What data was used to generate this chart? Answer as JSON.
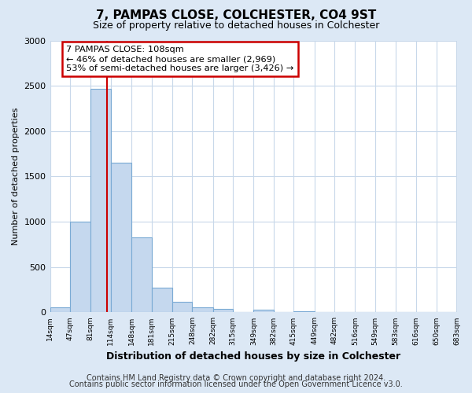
{
  "title": "7, PAMPAS CLOSE, COLCHESTER, CO4 9ST",
  "subtitle": "Size of property relative to detached houses in Colchester",
  "xlabel": "Distribution of detached houses by size in Colchester",
  "ylabel": "Number of detached properties",
  "bar_edges": [
    14,
    47,
    81,
    114,
    148,
    181,
    215,
    248,
    282,
    315,
    349,
    382,
    415,
    449,
    482,
    516,
    549,
    583,
    616,
    650,
    683
  ],
  "bar_heights": [
    55,
    1000,
    2470,
    1650,
    830,
    270,
    120,
    55,
    35,
    0,
    30,
    0,
    15,
    0,
    0,
    0,
    0,
    0,
    0,
    0
  ],
  "bar_color": "#c5d8ee",
  "bar_edge_color": "#7aaad4",
  "bar_linewidth": 0.8,
  "vline_x": 108,
  "vline_color": "#cc0000",
  "vline_linewidth": 1.5,
  "annotation_line1": "7 PAMPAS CLOSE: 108sqm",
  "annotation_line2": "← 46% of detached houses are smaller (2,969)",
  "annotation_line3": "53% of semi-detached houses are larger (3,426) →",
  "annotation_box_color": "#cc0000",
  "annotation_box_bg": "#ffffff",
  "ylim": [
    0,
    3000
  ],
  "yticks": [
    0,
    500,
    1000,
    1500,
    2000,
    2500,
    3000
  ],
  "tick_labels": [
    "14sqm",
    "47sqm",
    "81sqm",
    "114sqm",
    "148sqm",
    "181sqm",
    "215sqm",
    "248sqm",
    "282sqm",
    "315sqm",
    "349sqm",
    "382sqm",
    "415sqm",
    "449sqm",
    "482sqm",
    "516sqm",
    "549sqm",
    "583sqm",
    "616sqm",
    "650sqm",
    "683sqm"
  ],
  "footer_line1": "Contains HM Land Registry data © Crown copyright and database right 2024.",
  "footer_line2": "Contains public sector information licensed under the Open Government Licence v3.0.",
  "fig_bg_color": "#dce8f5",
  "plot_bg_color": "#ffffff",
  "grid_color": "#c8d8ea",
  "title_fontsize": 11,
  "subtitle_fontsize": 9,
  "footer_fontsize": 7
}
